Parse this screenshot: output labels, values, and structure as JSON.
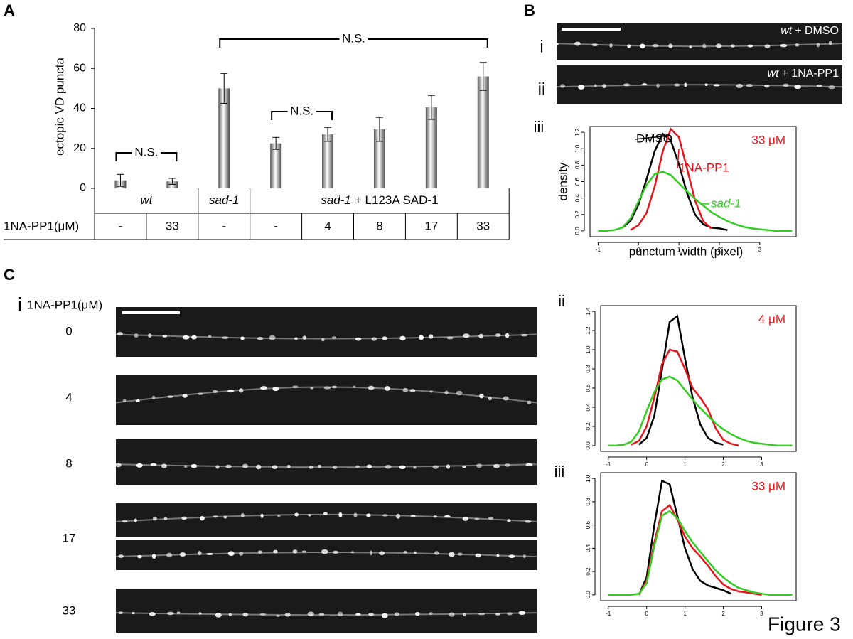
{
  "figure_label": "Figure 3",
  "panel_labels": [
    "A",
    "B",
    "C"
  ],
  "image_panels": {
    "B": [
      {
        "numeral": "i",
        "genotype": "wt",
        "treatment": "+ DMSO"
      },
      {
        "numeral": "ii",
        "genotype": "wt",
        "treatment": "+ 1NA-PP1"
      }
    ],
    "C": {
      "numeral": "i",
      "header": "1NA-PP1(μM)",
      "doses": [
        0,
        4,
        8,
        17,
        33
      ]
    }
  },
  "chart_data": [
    {
      "type": "bar",
      "y_label": "ectopic VD puncta",
      "ylim": [
        0,
        80
      ],
      "yticks": [
        0,
        20,
        40,
        60,
        80
      ],
      "values": [
        4,
        3.5,
        50,
        22.5,
        27,
        29.5,
        40.5,
        56
      ],
      "errors": [
        3,
        1.5,
        7.5,
        3,
        3.5,
        6,
        6,
        7
      ],
      "annotations": [
        "N.S.",
        "N.S.",
        "N.S."
      ],
      "table": {
        "row_label": "1NA-PP1(μM)",
        "groups": [
          {
            "genotype": "wt",
            "doses": [
              "-",
              "33"
            ]
          },
          {
            "genotype": "sad-1",
            "doses": [
              "-"
            ]
          },
          {
            "genotype": "sad-1",
            "transgene": "+ L123A SAD-1",
            "doses": [
              "-",
              "4",
              "8",
              "17",
              "33"
            ]
          }
        ]
      }
    },
    {
      "type": "line",
      "numeral": "iii",
      "x_label": "punctum width (pixel)",
      "y_label": "density",
      "dose_label": "33 μM",
      "xlim": [
        -1.2,
        3.9
      ],
      "ylim": [
        -0.07,
        1.27
      ],
      "xticks": [
        -1,
        0,
        1,
        2,
        3
      ],
      "yticks": [
        {
          "value": 0,
          "label": "0.0"
        },
        0.2,
        0.4,
        0.6,
        0.8,
        {
          "value": 1,
          "label": "1.0"
        },
        1.2
      ],
      "x": [
        -1,
        -0.8,
        -0.6,
        -0.4,
        -0.2,
        0,
        0.2,
        0.4,
        0.6,
        0.8,
        1,
        1.2,
        1.4,
        1.6,
        1.8,
        2,
        2.2,
        2.4,
        2.6,
        2.8,
        3,
        3.2,
        3.4,
        3.6,
        3.8
      ],
      "series": [
        {
          "name": "DMSO",
          "color": "#000000",
          "values": [
            null,
            null,
            null,
            0.04,
            0.12,
            0.32,
            0.63,
            0.97,
            1.18,
            1.1,
            0.81,
            0.46,
            0.2,
            0.08,
            0.04,
            0.03,
            0.01,
            null,
            null,
            null,
            null,
            null,
            null,
            null,
            null
          ]
        },
        {
          "name": "1NA-PP1",
          "color": "#e8141c",
          "values": [
            null,
            null,
            null,
            null,
            0.01,
            0.07,
            0.22,
            0.54,
            0.97,
            1.24,
            1.14,
            0.76,
            0.37,
            0.12,
            0.03,
            null,
            null,
            null,
            null,
            null,
            null,
            null,
            null,
            null,
            null
          ]
        },
        {
          "name": "sad-1",
          "color": "#33cc22",
          "values": [
            0,
            0,
            0.01,
            0.04,
            0.15,
            0.36,
            0.56,
            0.69,
            0.72,
            0.68,
            0.58,
            0.48,
            0.39,
            0.31,
            0.23,
            0.17,
            0.12,
            0.08,
            0.05,
            0.03,
            0.02,
            0.01,
            0,
            0,
            0
          ]
        }
      ]
    },
    {
      "type": "line",
      "numeral": "ii",
      "dose_label": "4 μM",
      "xlim": [
        -1.2,
        3.9
      ],
      "ylim": [
        -0.06,
        1.46
      ],
      "xticks": [
        -1,
        0,
        1,
        2,
        3
      ],
      "yticks": [
        {
          "value": 0,
          "label": "0.0"
        },
        0.2,
        0.4,
        0.6,
        0.8,
        {
          "value": 1,
          "label": "1.0"
        },
        1.2,
        1.4
      ],
      "x": [
        -1,
        -0.8,
        -0.6,
        -0.4,
        -0.2,
        0,
        0.2,
        0.4,
        0.6,
        0.8,
        1,
        1.2,
        1.4,
        1.6,
        1.8,
        2,
        2.2,
        2.4,
        2.6,
        2.8,
        3,
        3.2,
        3.4,
        3.6,
        3.8
      ],
      "series": [
        {
          "color": "#000000",
          "values": [
            null,
            null,
            null,
            null,
            0.01,
            0.08,
            0.31,
            0.79,
            1.29,
            1.35,
            0.91,
            0.5,
            0.22,
            0.08,
            0.03,
            0.01,
            null,
            null,
            null,
            null,
            null,
            null,
            null,
            null,
            null
          ]
        },
        {
          "color": "#e8141c",
          "values": [
            null,
            null,
            null,
            0.01,
            0.05,
            0.2,
            0.5,
            0.85,
            1,
            0.98,
            0.8,
            0.6,
            0.5,
            0.38,
            0.18,
            0.06,
            0.02,
            0,
            null,
            null,
            null,
            null,
            null,
            null,
            null
          ]
        },
        {
          "color": "#33cc22",
          "values": [
            0,
            0,
            0.01,
            0.04,
            0.15,
            0.36,
            0.56,
            0.69,
            0.72,
            0.68,
            0.58,
            0.48,
            0.39,
            0.31,
            0.23,
            0.17,
            0.12,
            0.08,
            0.05,
            0.03,
            0.02,
            0.01,
            0,
            0,
            0
          ]
        }
      ]
    },
    {
      "type": "line",
      "numeral": "iii",
      "dose_label": "33 μM",
      "xlim": [
        -1.2,
        3.9
      ],
      "ylim": [
        -0.05,
        1.05
      ],
      "xticks": [
        -1,
        0,
        1,
        2,
        3
      ],
      "yticks": [
        {
          "value": 0,
          "label": "0.0"
        },
        0.2,
        0.4,
        0.6,
        0.8,
        {
          "value": 1,
          "label": "1.0"
        }
      ],
      "x": [
        -1,
        -0.8,
        -0.6,
        -0.4,
        -0.2,
        0,
        0.2,
        0.4,
        0.6,
        0.8,
        1,
        1.2,
        1.4,
        1.6,
        1.8,
        2,
        2.2,
        2.4,
        2.6,
        2.8,
        3,
        3.2,
        3.4,
        3.6,
        3.8
      ],
      "series": [
        {
          "color": "#000000",
          "values": [
            null,
            null,
            null,
            null,
            0,
            0.15,
            0.6,
            0.98,
            0.95,
            0.68,
            0.4,
            0.22,
            0.12,
            0.08,
            0.06,
            0.04,
            0.01,
            null,
            null,
            null,
            null,
            null,
            null,
            null,
            null
          ]
        },
        {
          "color": "#e8141c",
          "values": [
            null,
            null,
            null,
            null,
            0,
            0.12,
            0.45,
            0.72,
            0.77,
            0.65,
            0.5,
            0.4,
            0.33,
            0.25,
            0.16,
            0.09,
            0.05,
            0.03,
            0.02,
            0.01,
            0,
            null,
            null,
            null,
            null
          ]
        },
        {
          "color": "#33cc22",
          "values": [
            0,
            0,
            0,
            0,
            0.01,
            0.1,
            0.42,
            0.68,
            0.72,
            0.66,
            0.55,
            0.45,
            0.37,
            0.29,
            0.21,
            0.15,
            0.1,
            0.06,
            0.04,
            0.02,
            0.01,
            0,
            0,
            0,
            0
          ]
        }
      ]
    }
  ]
}
